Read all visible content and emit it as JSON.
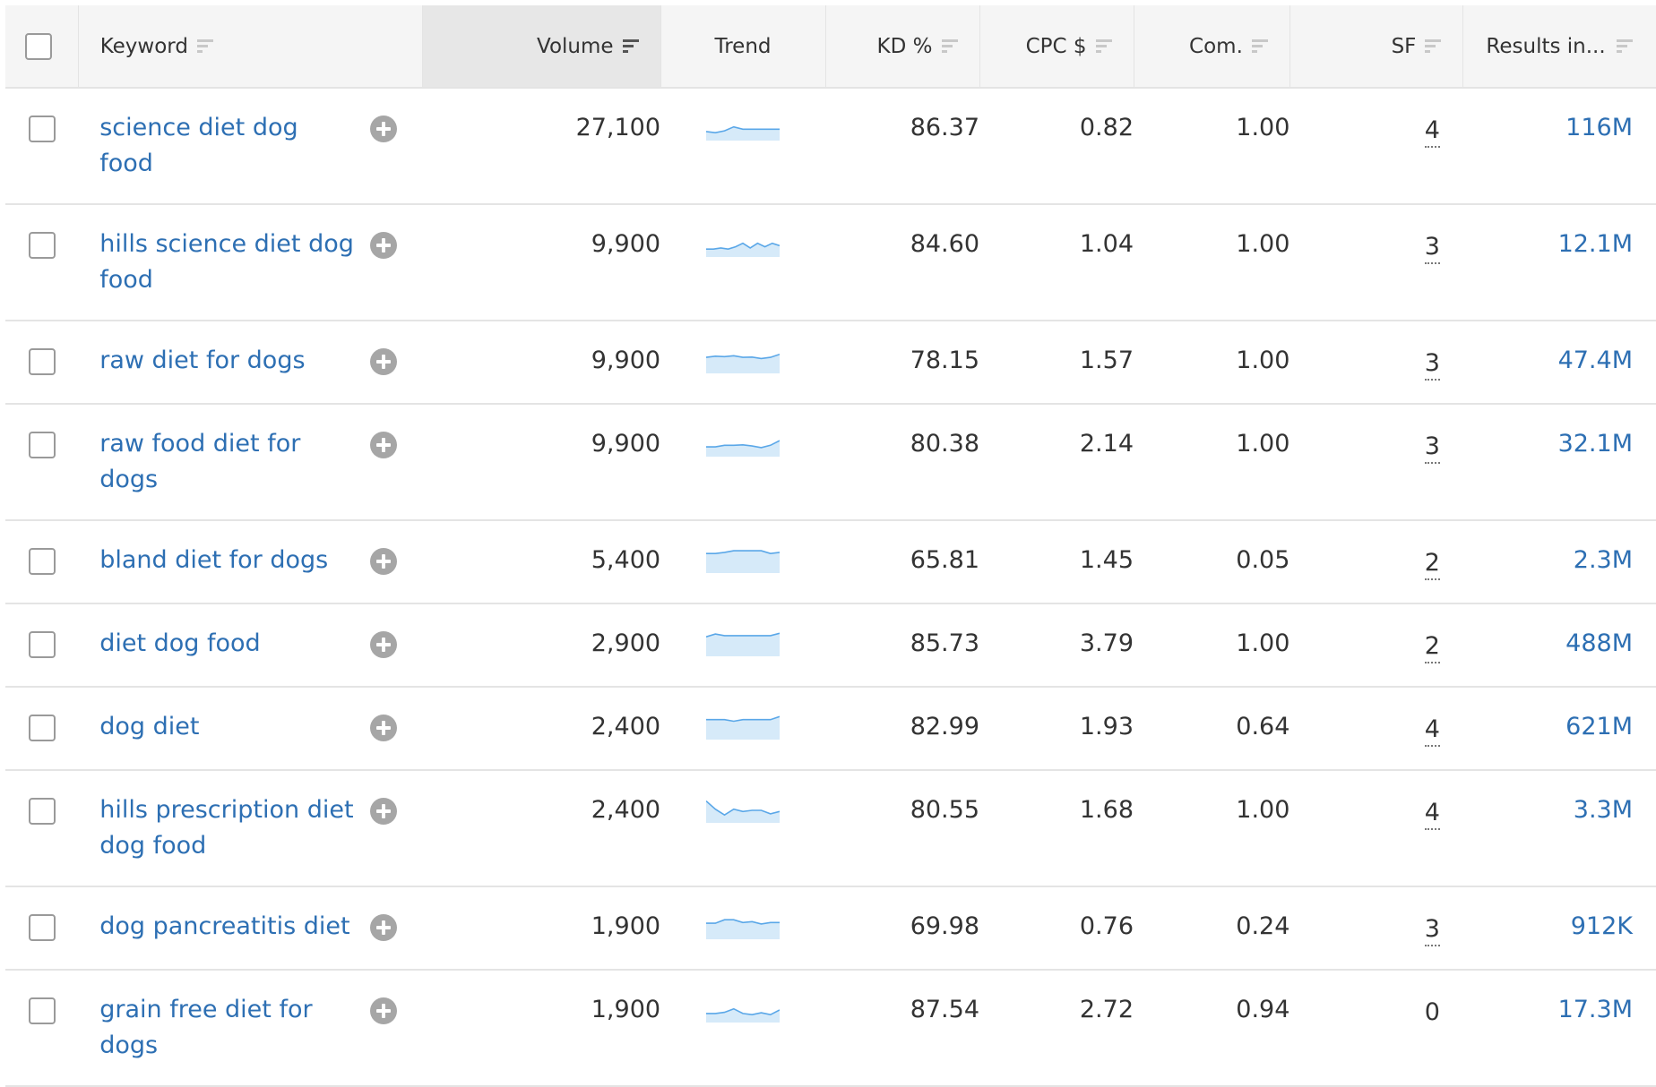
{
  "table": {
    "columns": {
      "keyword": "Keyword",
      "volume": "Volume",
      "trend": "Trend",
      "kd": "KD %",
      "cpc": "CPC $",
      "com": "Com.",
      "sf": "SF",
      "results": "Results in..."
    },
    "rows": [
      {
        "keyword": "science diet dog food",
        "volume": "27,100",
        "kd": "86.37",
        "cpc": "0.82",
        "com": "1.00",
        "sf": "4",
        "results": "116M",
        "trend": [
          0.35,
          0.3,
          0.38,
          0.55,
          0.45,
          0.45,
          0.45,
          0.45,
          0.45
        ]
      },
      {
        "keyword": "hills science diet dog food",
        "volume": "9,900",
        "kd": "84.60",
        "cpc": "1.04",
        "com": "1.00",
        "sf": "3",
        "results": "12.1M",
        "trend": [
          0.3,
          0.3,
          0.35,
          0.3,
          0.4,
          0.55,
          0.35,
          0.55,
          0.4,
          0.55,
          0.45
        ]
      },
      {
        "keyword": "raw diet for dogs",
        "volume": "9,900",
        "kd": "78.15",
        "cpc": "1.57",
        "com": "1.00",
        "sf": "3",
        "results": "47.4M",
        "trend": [
          0.65,
          0.7,
          0.68,
          0.72,
          0.65,
          0.66,
          0.6,
          0.65,
          0.78
        ]
      },
      {
        "keyword": "raw food diet for dogs",
        "volume": "9,900",
        "kd": "80.38",
        "cpc": "2.14",
        "com": "1.00",
        "sf": "3",
        "results": "32.1M",
        "trend": [
          0.38,
          0.38,
          0.45,
          0.45,
          0.47,
          0.42,
          0.35,
          0.45,
          0.65
        ]
      },
      {
        "keyword": "bland diet for dogs",
        "volume": "5,400",
        "kd": "65.81",
        "cpc": "1.45",
        "com": "0.05",
        "sf": "2",
        "results": "2.3M",
        "trend": [
          0.8,
          0.8,
          0.85,
          0.92,
          0.92,
          0.92,
          0.92,
          0.8,
          0.85
        ]
      },
      {
        "keyword": "diet dog food",
        "volume": "2,900",
        "kd": "85.73",
        "cpc": "3.79",
        "com": "1.00",
        "sf": "2",
        "results": "488M",
        "trend": [
          0.8,
          0.92,
          0.85,
          0.85,
          0.85,
          0.85,
          0.85,
          0.85,
          0.95
        ]
      },
      {
        "keyword": "dog diet",
        "volume": "2,400",
        "kd": "82.99",
        "cpc": "1.93",
        "com": "0.64",
        "sf": "4",
        "results": "621M",
        "trend": [
          0.82,
          0.82,
          0.82,
          0.75,
          0.82,
          0.82,
          0.82,
          0.82,
          0.95
        ]
      },
      {
        "keyword": "hills prescription diet dog food",
        "volume": "2,400",
        "kd": "80.55",
        "cpc": "1.68",
        "com": "1.00",
        "sf": "4",
        "results": "3.3M",
        "trend": [
          0.9,
          0.55,
          0.3,
          0.55,
          0.45,
          0.5,
          0.5,
          0.35,
          0.45
        ]
      },
      {
        "keyword": "dog pancreatitis diet",
        "volume": "1,900",
        "kd": "69.98",
        "cpc": "0.76",
        "com": "0.24",
        "sf": "3",
        "results": "912K",
        "trend": [
          0.65,
          0.65,
          0.8,
          0.8,
          0.68,
          0.72,
          0.62,
          0.68,
          0.68
        ]
      },
      {
        "keyword": "grain free diet for dogs",
        "volume": "1,900",
        "kd": "87.54",
        "cpc": "2.72",
        "com": "0.94",
        "sf": "0",
        "results": "17.3M",
        "trend": [
          0.35,
          0.35,
          0.4,
          0.55,
          0.35,
          0.3,
          0.38,
          0.3,
          0.5
        ]
      }
    ]
  },
  "colors": {
    "link": "#2d6fb3",
    "trend_line": "#5aa7e8",
    "trend_fill": "#d6eaf9"
  }
}
